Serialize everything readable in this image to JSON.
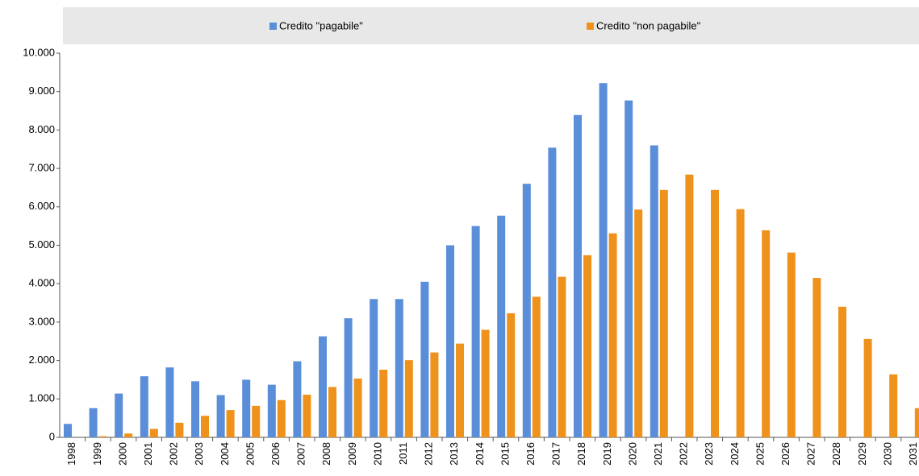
{
  "chart_data": {
    "type": "bar",
    "categories": [
      "1998",
      "1999",
      "2000",
      "2001",
      "2002",
      "2003",
      "2004",
      "2005",
      "2006",
      "2007",
      "2008",
      "2009",
      "2010",
      "2011",
      "2012",
      "2013",
      "2014",
      "2015",
      "2016",
      "2017",
      "2018",
      "2019",
      "2020",
      "2021",
      "2022",
      "2023",
      "2024",
      "2025",
      "2026",
      "2027",
      "2028",
      "2029",
      "2030",
      "2031"
    ],
    "series": [
      {
        "name": "Credito \"pagabile\"",
        "color": "#5b8ed8",
        "values": [
          350,
          760,
          1140,
          1590,
          1820,
          1460,
          1100,
          1500,
          1370,
          1980,
          2630,
          3100,
          3600,
          3600,
          4050,
          5000,
          5500,
          5770,
          6600,
          7540,
          8390,
          9220,
          8770,
          7600,
          null,
          null,
          null,
          null,
          null,
          null,
          null,
          null,
          null,
          null
        ]
      },
      {
        "name": "Credito \"non pagabile\"",
        "color": "#ef921c",
        "values": [
          0,
          30,
          100,
          220,
          380,
          560,
          710,
          820,
          970,
          1110,
          1310,
          1530,
          1760,
          2010,
          2210,
          2440,
          2800,
          3230,
          3660,
          4180,
          4740,
          5310,
          5930,
          6440,
          6840,
          6440,
          5940,
          5390,
          4810,
          4150,
          3400,
          2560,
          1640,
          760
        ]
      }
    ],
    "ylim": [
      0,
      10000
    ],
    "yticks": [
      0,
      {
        "value": 1000,
        "label": "1.000"
      },
      {
        "value": 2000,
        "label": "2.000"
      },
      {
        "value": 3000,
        "label": "3.000"
      },
      {
        "value": 4000,
        "label": "4.000"
      },
      {
        "value": 5000,
        "label": "5.000"
      },
      {
        "value": 6000,
        "label": "6.000"
      },
      {
        "value": 7000,
        "label": "7.000"
      },
      {
        "value": 8000,
        "label": "8.000"
      },
      {
        "value": 9000,
        "label": "9.000"
      },
      {
        "value": 10000,
        "label": "10.000"
      }
    ],
    "legend": "top"
  }
}
